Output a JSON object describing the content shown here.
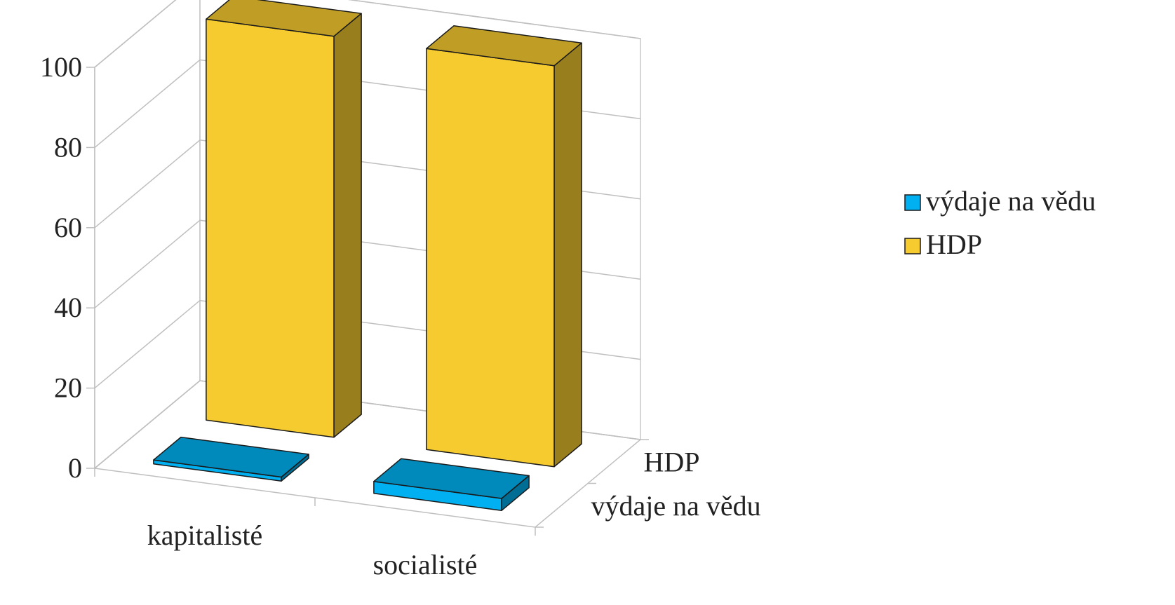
{
  "chart_data": {
    "type": "bar",
    "categories": [
      "kapitalisté",
      "socialisté"
    ],
    "series": [
      {
        "name": "výdaje na vědu",
        "values": [
          1,
          3
        ]
      },
      {
        "name": "HDP",
        "values": [
          100,
          100
        ]
      }
    ],
    "depth_labels": [
      "výdaje na vědu",
      "HDP"
    ],
    "yticks": [
      "0",
      "20",
      "40",
      "60",
      "80",
      "100"
    ],
    "ylim": [
      0,
      100
    ],
    "grid": true,
    "legend": "right",
    "colors": {
      "výdaje na vědu": "#00b0f0",
      "HDP": "#f6cb2f"
    }
  }
}
